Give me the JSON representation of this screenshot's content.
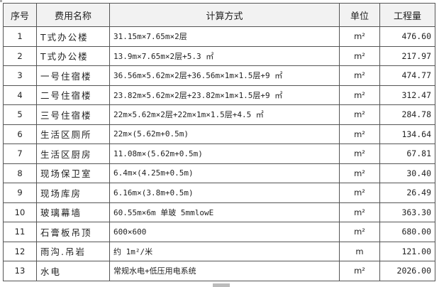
{
  "table": {
    "headers": [
      "序号",
      "费用名称",
      "计算方式",
      "单位",
      "工程量"
    ],
    "rows": [
      {
        "no": "1",
        "name": "T式办公楼",
        "formula": "31.15m×7.65m×2层",
        "unit": "m²",
        "qty": "476.60"
      },
      {
        "no": "2",
        "name": "T式办公楼",
        "formula": "13.9m×7.65m×2层+5.3 ㎡",
        "unit": "m²",
        "qty": "217.97"
      },
      {
        "no": "3",
        "name": "一号住宿楼",
        "formula": "36.56m×5.62m×2层+36.56m×1m×1.5层+9 ㎡",
        "unit": "m²",
        "qty": "474.77"
      },
      {
        "no": "4",
        "name": "二号住宿楼",
        "formula": "23.82m×5.62m×2层+23.82m×1m×1.5层+9 ㎡",
        "unit": "m²",
        "qty": "312.47"
      },
      {
        "no": "5",
        "name": "三号住宿楼",
        "formula": "22m×5.62m×2层+22m×1m×1.5层+4.5 ㎡",
        "unit": "m²",
        "qty": "284.78"
      },
      {
        "no": "6",
        "name": "生活区厕所",
        "formula": "22m×(5.62m+0.5m)",
        "unit": "m²",
        "qty": "134.64"
      },
      {
        "no": "7",
        "name": "生活区厨房",
        "formula": "11.08m×(5.62m+0.5m)",
        "unit": "m²",
        "qty": "67.81"
      },
      {
        "no": "8",
        "name": "现场保卫室",
        "formula": "6.4m×(4.25m+0.5m)",
        "unit": "m²",
        "qty": "30.40"
      },
      {
        "no": "9",
        "name": "现场库房",
        "formula": "6.16m×(3.8m+0.5m)",
        "unit": "m²",
        "qty": "26.49"
      },
      {
        "no": "10",
        "name": "玻璃幕墙",
        "formula": "60.55m×6m  单玻 5mmlowE",
        "unit": "m²",
        "qty": "363.30"
      },
      {
        "no": "11",
        "name": "石膏板吊顶",
        "formula": "600×600",
        "unit": "m²",
        "qty": "680.00"
      },
      {
        "no": "12",
        "name": "雨沟.吊岩",
        "formula": "约 1m²/米",
        "unit": "m",
        "qty": "121.00"
      },
      {
        "no": "13",
        "name": "水电",
        "formula": "常规水电+低压用电系统",
        "unit": "m²",
        "qty": "2026.00"
      }
    ]
  }
}
